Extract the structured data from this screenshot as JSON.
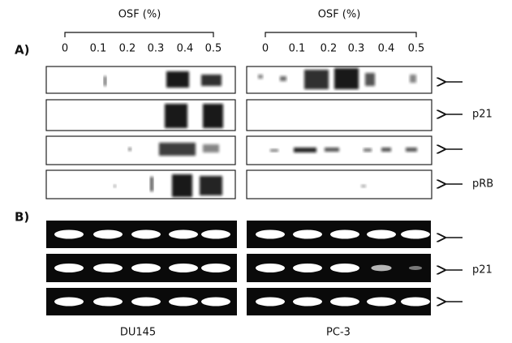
{
  "header": {
    "left_title": "OSF (%)",
    "right_title": "OSF (%)"
  },
  "ticks": {
    "left": [
      "0",
      "0.1",
      "0.2",
      "0.3",
      "0.4",
      "0.5"
    ],
    "right": [
      "0",
      "0.1",
      "0.2",
      "0.3",
      "0.4",
      "0.5"
    ]
  },
  "panels": {
    "a_label": "A)",
    "b_label": "B)"
  },
  "row_labels": {
    "a": [
      "p21",
      "pRB"
    ],
    "b": [
      "p21"
    ]
  },
  "cell_lines": [
    "DU145",
    "PC-3"
  ]
}
